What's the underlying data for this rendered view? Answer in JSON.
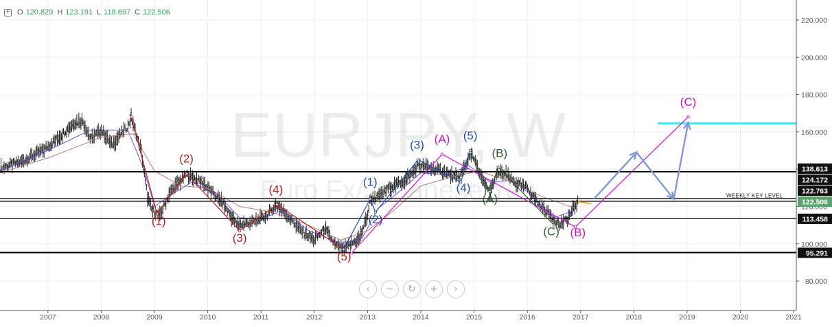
{
  "header": {
    "toggle_icon": "plus-square-icon",
    "open_label": "O",
    "open_value": "120.829",
    "high_label": "H",
    "high_value": "123.191",
    "low_label": "L",
    "low_value": "118.697",
    "close_label": "C",
    "close_value": "122.506"
  },
  "watermark": {
    "title": "EURJPY, W",
    "subtitle": "Euro Fx/Japanese Yen"
  },
  "navigation": {
    "buttons": [
      {
        "name": "scroll-left-button",
        "icon": "chevron-left-icon",
        "glyph": "‹"
      },
      {
        "name": "zoom-out-button",
        "icon": "minus-icon",
        "glyph": "−"
      },
      {
        "name": "reset-button",
        "icon": "reset-icon",
        "glyph": "↻"
      },
      {
        "name": "zoom-in-button",
        "icon": "plus-icon",
        "glyph": "+"
      },
      {
        "name": "scroll-right-button",
        "icon": "chevron-right-icon",
        "glyph": "›"
      }
    ]
  },
  "colors": {
    "background": "#ffffff",
    "grid": "#eeeeee",
    "axis_text": "#555555",
    "price_bar": "#222222",
    "ma_fast": "#5b3fd9",
    "ma_slow": "#b06d6d",
    "wave_red": "#b22222",
    "wave_blue": "#1f4fa8",
    "wave_magenta": "#cc10cc",
    "wave_green": "#2e5e2e",
    "projection": "#7f96d8",
    "target_line": "#4ee4ee",
    "level_line": "#000000",
    "current_price_bg": "#5ba36b",
    "orange": "#f0a030"
  },
  "chart_data": {
    "type": "candlestick",
    "symbol": "EURJPY",
    "timeframe": "W",
    "description": "Euro Fx/Japanese Yen",
    "x_unit": "year",
    "xlim": [
      2006.1,
      2021.05
    ],
    "ylim": [
      70,
      228
    ],
    "x_ticks": [
      "2007",
      "2008",
      "2009",
      "2010",
      "2011",
      "2012",
      "2013",
      "2014",
      "2015",
      "2016",
      "2017",
      "2018",
      "2019",
      "2020",
      "2021"
    ],
    "y_ticks": [
      "80.000",
      "100.000",
      "120.000",
      "140.000",
      "160.000",
      "180.000",
      "200.000",
      "220.000"
    ],
    "price_path": [
      [
        2006.1,
        140.5
      ],
      [
        2006.5,
        144
      ],
      [
        2006.9,
        150
      ],
      [
        2007.2,
        157
      ],
      [
        2007.5,
        165
      ],
      [
        2007.65,
        166
      ],
      [
        2007.8,
        156
      ],
      [
        2008.0,
        161
      ],
      [
        2008.2,
        153
      ],
      [
        2008.5,
        163
      ],
      [
        2008.56,
        168
      ],
      [
        2008.75,
        150
      ],
      [
        2008.87,
        125
      ],
      [
        2008.95,
        118
      ],
      [
        2009.1,
        115
      ],
      [
        2009.3,
        128
      ],
      [
        2009.6,
        137
      ],
      [
        2009.9,
        133
      ],
      [
        2010.1,
        127
      ],
      [
        2010.3,
        121
      ],
      [
        2010.55,
        110
      ],
      [
        2010.75,
        111
      ],
      [
        2010.9,
        112
      ],
      [
        2011.1,
        115
      ],
      [
        2011.3,
        121
      ],
      [
        2011.5,
        115
      ],
      [
        2011.75,
        107
      ],
      [
        2012.0,
        102
      ],
      [
        2012.2,
        108
      ],
      [
        2012.4,
        99
      ],
      [
        2012.55,
        97
      ],
      [
        2012.7,
        100
      ],
      [
        2012.85,
        103
      ],
      [
        2013.0,
        115
      ],
      [
        2013.05,
        124
      ],
      [
        2013.2,
        125
      ],
      [
        2013.4,
        130
      ],
      [
        2013.7,
        134
      ],
      [
        2013.85,
        138
      ],
      [
        2013.95,
        142
      ],
      [
        2014.1,
        141
      ],
      [
        2014.4,
        139
      ],
      [
        2014.7,
        135
      ],
      [
        2014.85,
        142
      ],
      [
        2014.93,
        149
      ],
      [
        2015.0,
        145
      ],
      [
        2015.2,
        131
      ],
      [
        2015.3,
        128
      ],
      [
        2015.45,
        138
      ],
      [
        2015.6,
        137
      ],
      [
        2015.8,
        132
      ],
      [
        2016.0,
        130
      ],
      [
        2016.2,
        122
      ],
      [
        2016.45,
        115
      ],
      [
        2016.6,
        110
      ],
      [
        2016.75,
        113
      ],
      [
        2016.85,
        118
      ],
      [
        2016.95,
        122.5
      ]
    ],
    "moving_averages": [
      {
        "color": "#5b3fd9",
        "path": [
          [
            2006.1,
            139
          ],
          [
            2007.0,
            150
          ],
          [
            2007.8,
            161
          ],
          [
            2008.5,
            161
          ],
          [
            2008.8,
            140
          ],
          [
            2009.0,
            120
          ],
          [
            2009.3,
            126
          ],
          [
            2009.7,
            133
          ],
          [
            2010.2,
            126
          ],
          [
            2010.6,
            114
          ],
          [
            2011.0,
            113
          ],
          [
            2011.4,
            118
          ],
          [
            2011.9,
            107
          ],
          [
            2012.5,
            100
          ],
          [
            2012.9,
            103
          ],
          [
            2013.2,
            119
          ],
          [
            2013.6,
            128
          ],
          [
            2014.0,
            138
          ],
          [
            2014.5,
            137
          ],
          [
            2014.9,
            142
          ],
          [
            2015.3,
            133
          ],
          [
            2015.7,
            134
          ],
          [
            2016.0,
            128
          ],
          [
            2016.5,
            114
          ],
          [
            2016.9,
            118
          ]
        ]
      },
      {
        "color": "#b06d6d",
        "path": [
          [
            2006.1,
            138
          ],
          [
            2007.0,
            146
          ],
          [
            2008.0,
            157
          ],
          [
            2008.6,
            159
          ],
          [
            2009.0,
            139
          ],
          [
            2009.5,
            131
          ],
          [
            2010.0,
            130
          ],
          [
            2010.6,
            120
          ],
          [
            2011.2,
            117
          ],
          [
            2011.8,
            111
          ],
          [
            2012.5,
            102
          ],
          [
            2013.0,
            107
          ],
          [
            2013.5,
            118
          ],
          [
            2014.0,
            131
          ],
          [
            2014.6,
            136
          ],
          [
            2015.1,
            139
          ],
          [
            2015.7,
            133
          ],
          [
            2016.3,
            125
          ],
          [
            2016.9,
            119
          ]
        ]
      }
    ],
    "levels": [
      {
        "price": 138.613,
        "label": "138.613"
      },
      {
        "price": 124.172,
        "label": "124.172"
      },
      {
        "price": 122.763,
        "label": "122.763"
      },
      {
        "price": 113.458,
        "label": "113.458"
      },
      {
        "price": 95.291,
        "label": "95.291"
      }
    ],
    "key_level_label": "WEEKLY KEY LEVEL",
    "current_price": {
      "price": 122.506,
      "label": "122.506"
    },
    "target_line": {
      "price": 164.5,
      "x_start": 2018.45,
      "x_end": 2021.05
    },
    "waves": [
      {
        "name": "red-impulse",
        "color": "#b22222",
        "path": [
          [
            2008.56,
            168
          ],
          [
            2009.05,
            116
          ],
          [
            2009.6,
            137.5
          ],
          [
            2010.6,
            107
          ],
          [
            2011.3,
            121
          ],
          [
            2012.55,
            97
          ]
        ],
        "labels": [
          {
            "text": "(1)",
            "x": 2009.08,
            "y": 110
          },
          {
            "text": "(2)",
            "x": 2009.6,
            "y": 143.5
          },
          {
            "text": "(3)",
            "x": 2010.6,
            "y": 101
          },
          {
            "text": "(4)",
            "x": 2011.28,
            "y": 127
          },
          {
            "text": "(5)",
            "x": 2012.56,
            "y": 91
          }
        ]
      },
      {
        "name": "blue-impulse",
        "color": "#1f4fa8",
        "path": [
          [
            2012.55,
            97
          ],
          [
            2013.05,
            124
          ],
          [
            2013.15,
            117
          ],
          [
            2013.95,
            145
          ],
          [
            2014.75,
            133
          ],
          [
            2014.93,
            150
          ]
        ],
        "labels": [
          {
            "text": "(1)",
            "x": 2013.05,
            "y": 131
          },
          {
            "text": "(2)",
            "x": 2013.15,
            "y": 111
          },
          {
            "text": "(3)",
            "x": 2013.93,
            "y": 151
          },
          {
            "text": "(4)",
            "x": 2014.8,
            "y": 128
          },
          {
            "text": "(5)",
            "x": 2014.93,
            "y": 156
          }
        ]
      },
      {
        "name": "magenta-correction",
        "color": "#cc10cc",
        "path": [
          [
            2012.7,
            95
          ],
          [
            2014.4,
            148
          ],
          [
            2016.9,
            109
          ],
          [
            2019.02,
            168
          ]
        ],
        "labels": [
          {
            "text": "(A)",
            "x": 2014.4,
            "y": 154
          },
          {
            "text": "(B)",
            "x": 2016.95,
            "y": 104
          },
          {
            "text": "(C)",
            "x": 2019.02,
            "y": 174
          }
        ]
      },
      {
        "name": "green-correction",
        "color": "#2e5e2e",
        "path": [
          [
            2014.93,
            149
          ],
          [
            2015.3,
            128
          ],
          [
            2015.45,
            141
          ],
          [
            2016.5,
            110
          ]
        ],
        "labels": [
          {
            "text": "(A)",
            "x": 2015.3,
            "y": 122
          },
          {
            "text": "(B)",
            "x": 2015.48,
            "y": 146.5
          },
          {
            "text": "(C)",
            "x": 2016.45,
            "y": 104.5
          }
        ]
      }
    ],
    "projection_path": [
      [
        2017.25,
        124
      ],
      [
        2018.05,
        149
      ],
      [
        2018.75,
        124
      ],
      [
        2019.02,
        165
      ]
    ],
    "orange_marks": [
      [
        2016.95,
        122.5
      ],
      [
        2017.2,
        121.5
      ]
    ]
  }
}
